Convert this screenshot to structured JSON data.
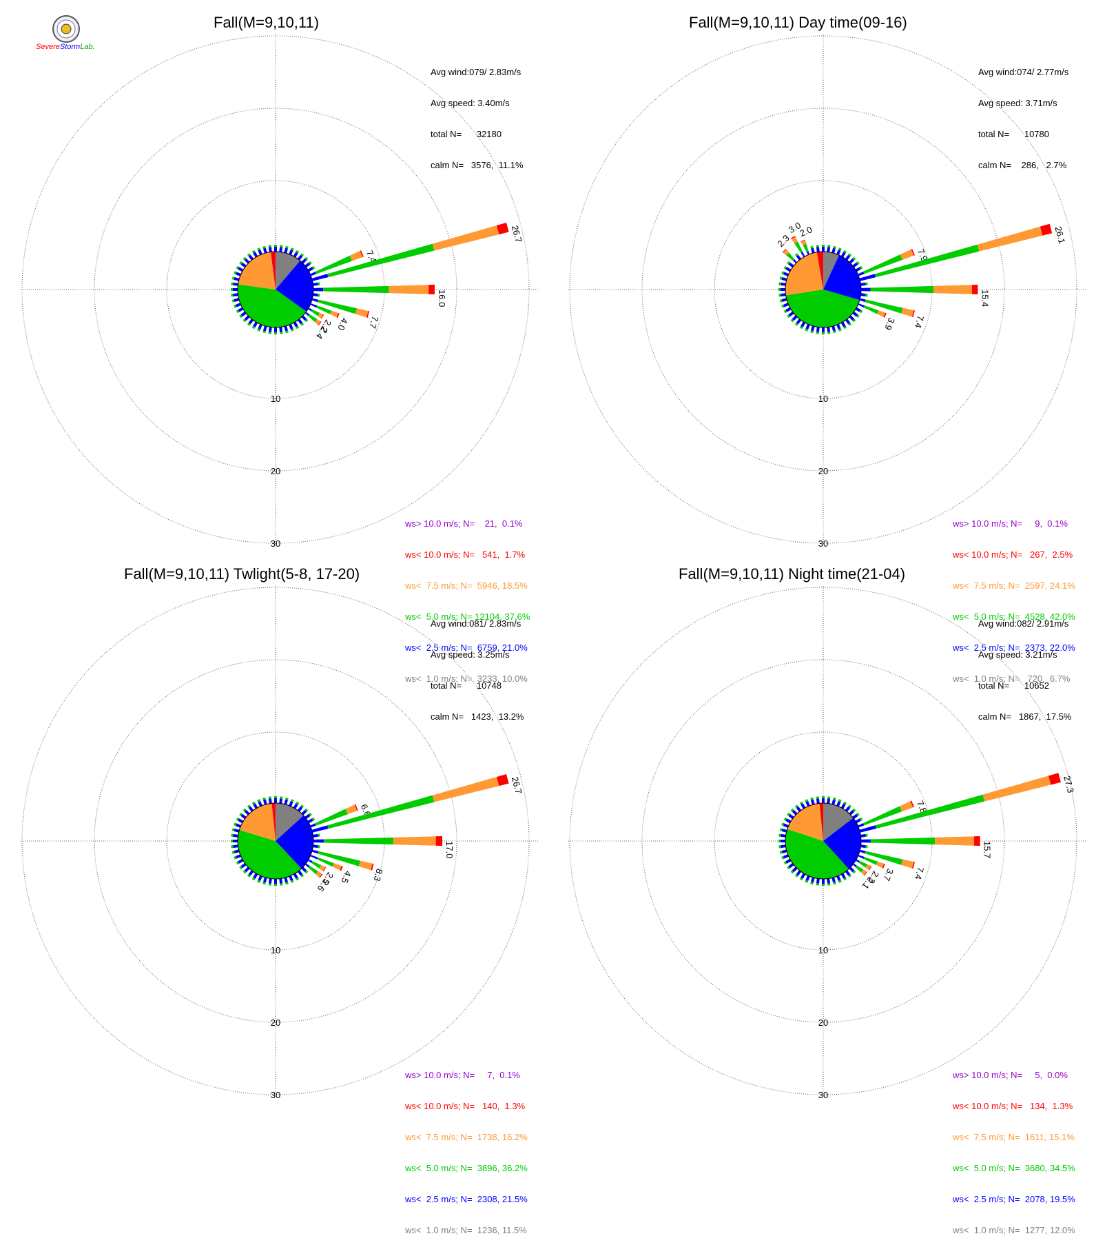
{
  "logo": {
    "text_1": "Severe",
    "text_2": "Storm",
    "text_3": "Lab."
  },
  "colors": {
    "ws_gt10": "#9900cc",
    "ws_lt10": "#ff0000",
    "ws_lt7_5": "#ff9933",
    "ws_lt5": "#00cc00",
    "ws_lt2_5": "#0000ff",
    "ws_lt1": "#808080"
  },
  "chart_data": [
    {
      "type": "wind-rose",
      "title": "Fall(M=9,10,11)",
      "rings": [
        "10",
        "20",
        "30"
      ],
      "stats": [
        "Avg wind:079/ 2.83m/s",
        "Avg speed: 3.40m/s",
        "total N=      32180",
        "calm N=   3576,  11.1%"
      ],
      "legend": [
        "ws> 10.0 m/s; N=    21,  0.1%",
        "ws< 10.0 m/s; N=   541,  1.7%",
        "ws<  7.5 m/s; N=  5946, 18.5%",
        "ws<  5.0 m/s; N= 12104, 37.6%",
        "ws<  2.5 m/s; N=  6759, 21.0%",
        "ws<  1.0 m/s; N=  3233, 10.0%"
      ],
      "pie": [
        10.0,
        21.0,
        37.6,
        18.5,
        1.7,
        0.1
      ],
      "spokes": [
        {
          "dir": 67.5,
          "total": 7.4,
          "label": "7.4"
        },
        {
          "dir": 75,
          "total": 26.7,
          "label": "26.7"
        },
        {
          "dir": 90,
          "total": 16.0,
          "label": "16.0"
        },
        {
          "dir": 105,
          "total": 7.7,
          "label": "7.7"
        },
        {
          "dir": 112.5,
          "total": 4.0,
          "label": "4.0"
        },
        {
          "dir": 120,
          "total": 2.2,
          "label": "2.2"
        },
        {
          "dir": 127.5,
          "total": 2.4,
          "label": "2.4"
        }
      ]
    },
    {
      "type": "wind-rose",
      "title": "Fall(M=9,10,11) Day time(09-16)",
      "rings": [
        "10",
        "20",
        "30"
      ],
      "stats": [
        "Avg wind:074/ 2.77m/s",
        "Avg speed: 3.71m/s",
        "total N=      10780",
        "calm N=    286,   2.7%"
      ],
      "legend": [
        "ws> 10.0 m/s; N=     9,  0.1%",
        "ws< 10.0 m/s; N=   267,  2.5%",
        "ws<  7.5 m/s; N=  2597, 24.1%",
        "ws<  5.0 m/s; N=  4528, 42.0%",
        "ws<  2.5 m/s; N=  2373, 22.0%",
        "ws<  1.0 m/s; N=   720,  6.7%"
      ],
      "pie": [
        6.7,
        22.0,
        42.0,
        24.1,
        2.5,
        0.1
      ],
      "spokes": [
        {
          "dir": 67.5,
          "total": 7.9,
          "label": "7.9"
        },
        {
          "dir": 75,
          "total": 26.1,
          "label": "26.1"
        },
        {
          "dir": 90,
          "total": 15.4,
          "label": "15.4"
        },
        {
          "dir": 105,
          "total": 7.4,
          "label": "7.4"
        },
        {
          "dir": 112.5,
          "total": 3.9,
          "label": "3.9"
        },
        {
          "dir": 315,
          "total": 2.3,
          "label": "2.3"
        },
        {
          "dir": 330,
          "total": 3.0,
          "label": "3.0"
        },
        {
          "dir": 337.5,
          "total": 2.0,
          "label": "2.0"
        }
      ]
    },
    {
      "type": "wind-rose",
      "title": "Fall(M=9,10,11) Twlight(5-8, 17-20)",
      "rings": [
        "10",
        "20",
        "30"
      ],
      "stats": [
        "Avg wind:081/ 2.83m/s",
        "Avg speed: 3.25m/s",
        "total N=      10748",
        "calm N=   1423,  13.2%"
      ],
      "legend": [
        "ws> 10.0 m/s; N=     7,  0.1%",
        "ws< 10.0 m/s; N=   140,  1.3%",
        "ws<  7.5 m/s; N=  1738, 16.2%",
        "ws<  5.0 m/s; N=  3896, 36.2%",
        "ws<  2.5 m/s; N=  2308, 21.5%",
        "ws<  1.0 m/s; N=  1236, 11.5%"
      ],
      "pie": [
        11.5,
        21.5,
        36.2,
        16.2,
        1.3,
        0.1
      ],
      "spokes": [
        {
          "dir": 67.5,
          "total": 6.6,
          "label": "6.6"
        },
        {
          "dir": 75,
          "total": 26.7,
          "label": "26.7"
        },
        {
          "dir": 90,
          "total": 17.0,
          "label": "17.0"
        },
        {
          "dir": 105,
          "total": 8.3,
          "label": "8.3"
        },
        {
          "dir": 112.5,
          "total": 4.5,
          "label": "4.5"
        },
        {
          "dir": 120,
          "total": 2.5,
          "label": "2.5"
        },
        {
          "dir": 127.5,
          "total": 2.6,
          "label": "2.6"
        }
      ]
    },
    {
      "type": "wind-rose",
      "title": "Fall(M=9,10,11) Night time(21-04)",
      "rings": [
        "10",
        "20",
        "30"
      ],
      "stats": [
        "Avg wind:082/ 2.91m/s",
        "Avg speed: 3.21m/s",
        "total N=      10652",
        "calm N=   1867,  17.5%"
      ],
      "legend": [
        "ws> 10.0 m/s; N=     5,  0.0%",
        "ws< 10.0 m/s; N=   134,  1.3%",
        "ws<  7.5 m/s; N=  1611, 15.1%",
        "ws<  5.0 m/s; N=  3680, 34.5%",
        "ws<  2.5 m/s; N=  2078, 19.5%",
        "ws<  1.0 m/s; N=  1277, 12.0%"
      ],
      "pie": [
        12.0,
        19.5,
        34.5,
        15.1,
        1.3,
        0.0
      ],
      "spokes": [
        {
          "dir": 67.5,
          "total": 7.8,
          "label": "7.8"
        },
        {
          "dir": 75,
          "total": 27.3,
          "label": "27.3"
        },
        {
          "dir": 90,
          "total": 15.7,
          "label": "15.7"
        },
        {
          "dir": 105,
          "total": 7.4,
          "label": "7.4"
        },
        {
          "dir": 112.5,
          "total": 3.7,
          "label": "3.7"
        },
        {
          "dir": 120,
          "total": 2.2,
          "label": "2.2"
        },
        {
          "dir": 127.5,
          "total": 2.1,
          "label": "2.1"
        }
      ]
    }
  ]
}
